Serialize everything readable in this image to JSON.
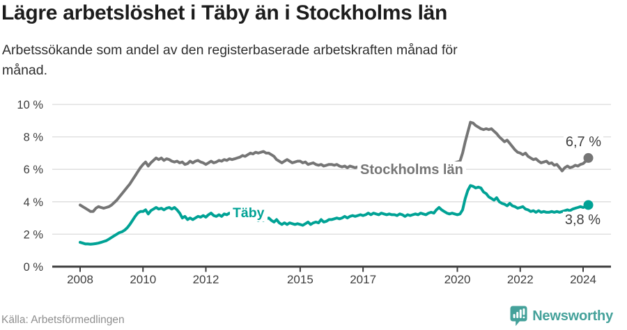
{
  "header": {
    "title": "Lägre arbetslöshet i Täby än i Stockholms län",
    "subtitle": "Arbetssökande som andel av den registerbaserade arbetskraften månad för\nmånad."
  },
  "footer": {
    "source": "Källa: Arbetsförmedlingen",
    "brand": "Newsworthy"
  },
  "colors": {
    "stockholm_line": "#757575",
    "taby_line": "#00a295",
    "gridline": "#dcdcdc",
    "axis": "#3d3d3d",
    "tick_label": "#3c3c3c",
    "value_label": "#3e3e3e",
    "brand_teal": "#44a19a",
    "background": "#ffffff"
  },
  "chart_data": {
    "type": "line",
    "title": "Lägre arbetslöshet i Täby än i Stockholms län",
    "subtitle": "Arbetssökande som andel av den registerbaserade arbetskraften månad för månad.",
    "x_unit": "months",
    "x_start": "2008-01",
    "x_end": "2024-03",
    "x_ticks": [
      2008,
      2010,
      2012,
      2015,
      2017,
      2020,
      2022,
      2024
    ],
    "y_ticks": [
      0,
      2,
      4,
      6,
      8,
      10
    ],
    "y_tick_suffix": " %",
    "ylim": [
      0,
      10
    ],
    "grid": "horizontal",
    "legend": "inline-labels",
    "series": [
      {
        "name": "Stockholms län",
        "color": "#757575",
        "end_label": "6,7 %",
        "end_value": 6.7,
        "values": [
          3.8,
          3.7,
          3.6,
          3.5,
          3.4,
          3.4,
          3.6,
          3.7,
          3.65,
          3.6,
          3.65,
          3.7,
          3.8,
          3.95,
          4.1,
          4.3,
          4.5,
          4.7,
          4.9,
          5.1,
          5.35,
          5.6,
          5.85,
          6.1,
          6.3,
          6.45,
          6.2,
          6.4,
          6.55,
          6.7,
          6.6,
          6.7,
          6.55,
          6.65,
          6.6,
          6.5,
          6.45,
          6.5,
          6.4,
          6.45,
          6.3,
          6.35,
          6.5,
          6.4,
          6.5,
          6.55,
          6.45,
          6.4,
          6.3,
          6.4,
          6.5,
          6.4,
          6.45,
          6.55,
          6.5,
          6.6,
          6.55,
          6.65,
          6.6,
          6.65,
          6.7,
          6.75,
          6.85,
          6.8,
          6.9,
          7.0,
          6.95,
          7.05,
          7.0,
          7.05,
          7.1,
          7.0,
          7.0,
          6.9,
          6.8,
          6.6,
          6.5,
          6.4,
          6.5,
          6.6,
          6.5,
          6.4,
          6.45,
          6.5,
          6.5,
          6.4,
          6.45,
          6.3,
          6.35,
          6.4,
          6.3,
          6.25,
          6.3,
          6.2,
          6.25,
          6.3,
          6.3,
          6.25,
          6.3,
          6.2,
          6.15,
          6.2,
          6.1,
          6.2,
          6.15,
          6.1,
          6.15,
          6.1,
          6.1,
          6.05,
          6.0,
          6.05,
          6.0,
          6.05,
          6.0,
          6.05,
          6.1,
          6.05,
          6.1,
          6.15,
          6.1,
          6.05,
          6.0,
          5.95,
          6.0,
          5.95,
          6.0,
          6.05,
          6.0,
          6.05,
          6.1,
          6.05,
          6.1,
          6.15,
          6.1,
          6.2,
          6.25,
          6.2,
          6.3,
          6.25,
          6.3,
          6.35,
          6.3,
          6.4,
          6.45,
          6.5,
          7.0,
          7.7,
          8.3,
          8.9,
          8.85,
          8.7,
          8.6,
          8.5,
          8.45,
          8.5,
          8.45,
          8.5,
          8.35,
          8.2,
          8.0,
          7.85,
          7.7,
          7.8,
          7.6,
          7.4,
          7.2,
          7.05,
          7.0,
          6.9,
          7.0,
          6.8,
          6.7,
          6.6,
          6.65,
          6.5,
          6.4,
          6.45,
          6.5,
          6.35,
          6.4,
          6.25,
          6.3,
          6.1,
          5.9,
          6.1,
          6.2,
          6.1,
          6.15,
          6.25,
          6.2,
          6.3,
          6.35,
          6.5,
          6.7
        ]
      },
      {
        "name": "Täby",
        "color": "#00a295",
        "end_label": "3,8 %",
        "end_value": 3.8,
        "values": [
          1.5,
          1.45,
          1.4,
          1.4,
          1.38,
          1.4,
          1.42,
          1.45,
          1.5,
          1.55,
          1.6,
          1.7,
          1.8,
          1.9,
          2.0,
          2.1,
          2.15,
          2.25,
          2.4,
          2.6,
          2.85,
          3.1,
          3.3,
          3.4,
          3.4,
          3.5,
          3.25,
          3.45,
          3.55,
          3.65,
          3.55,
          3.6,
          3.5,
          3.6,
          3.65,
          3.55,
          3.65,
          3.5,
          3.3,
          3.0,
          3.1,
          2.9,
          3.0,
          2.9,
          3.0,
          3.1,
          3.05,
          3.15,
          3.05,
          3.2,
          3.3,
          3.15,
          3.1,
          3.2,
          3.1,
          3.25,
          3.2,
          3.3,
          3.25,
          3.2,
          3.2,
          3.15,
          3.05,
          3.1,
          3.0,
          2.95,
          3.0,
          2.9,
          2.85,
          2.9,
          2.85,
          2.95,
          3.0,
          2.85,
          2.75,
          2.9,
          2.7,
          2.6,
          2.7,
          2.6,
          2.7,
          2.65,
          2.6,
          2.65,
          2.6,
          2.55,
          2.65,
          2.75,
          2.6,
          2.7,
          2.75,
          2.7,
          2.9,
          2.75,
          2.8,
          2.9,
          2.9,
          2.95,
          3.0,
          2.95,
          3.0,
          3.1,
          3.0,
          3.1,
          3.15,
          3.1,
          3.15,
          3.2,
          3.15,
          3.2,
          3.3,
          3.2,
          3.3,
          3.25,
          3.2,
          3.3,
          3.25,
          3.2,
          3.25,
          3.2,
          3.2,
          3.15,
          3.25,
          3.2,
          3.1,
          3.2,
          3.15,
          3.2,
          3.25,
          3.2,
          3.3,
          3.25,
          3.2,
          3.3,
          3.35,
          3.3,
          3.5,
          3.65,
          3.5,
          3.4,
          3.3,
          3.25,
          3.3,
          3.25,
          3.2,
          3.25,
          3.5,
          4.2,
          4.7,
          5.0,
          4.95,
          4.85,
          4.9,
          4.85,
          4.6,
          4.5,
          4.3,
          4.2,
          4.1,
          4.25,
          4.0,
          3.9,
          3.85,
          3.75,
          3.9,
          3.75,
          3.7,
          3.6,
          3.65,
          3.7,
          3.55,
          3.5,
          3.4,
          3.45,
          3.35,
          3.45,
          3.35,
          3.4,
          3.35,
          3.35,
          3.4,
          3.35,
          3.4,
          3.35,
          3.4,
          3.45,
          3.5,
          3.45,
          3.55,
          3.6,
          3.65,
          3.7,
          3.65,
          3.7,
          3.8
        ]
      }
    ],
    "inline_labels": [
      {
        "text": "Stockholms län",
        "series": "Stockholms län"
      },
      {
        "text": "Täby",
        "series": "Täby"
      }
    ]
  }
}
